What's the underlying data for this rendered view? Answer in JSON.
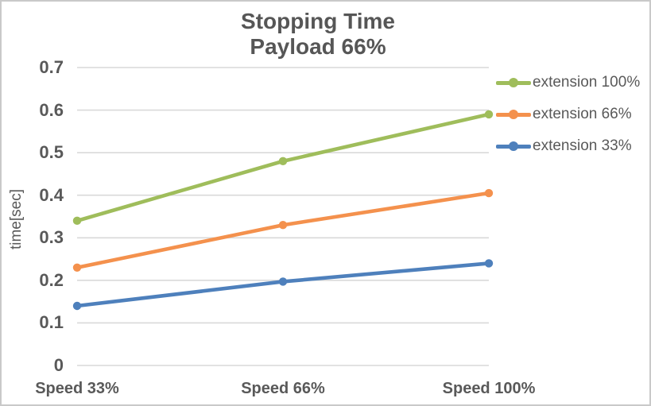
{
  "chart_data": {
    "type": "line",
    "title": "Stopping Time",
    "subtitle": "Payload 66%",
    "categories": [
      "Speed 33%",
      "Speed 66%",
      "Speed 100%"
    ],
    "series": [
      {
        "name": "extension 100%",
        "color": "#9FBD5B",
        "values": [
          0.34,
          0.48,
          0.59
        ]
      },
      {
        "name": "extension 66%",
        "color": "#F4914D",
        "values": [
          0.23,
          0.33,
          0.405
        ]
      },
      {
        "name": "extension 33%",
        "color": "#4E80BC",
        "values": [
          0.14,
          0.197,
          0.24
        ]
      }
    ],
    "xlabel": "",
    "ylabel": "time[sec]",
    "ylim": [
      0,
      0.7
    ],
    "ytick_step": 0.1,
    "yticks": [
      "0",
      "0.1",
      "0.2",
      "0.3",
      "0.4",
      "0.5",
      "0.6",
      "0.7"
    ],
    "grid": true,
    "marker": "circle",
    "legend_position": "right",
    "colors": {
      "text": "#595959",
      "title_text": "#565656",
      "gridline": "#D9D9D9",
      "frame_border": "#C9C9C9",
      "background": "#FFFFFF"
    }
  }
}
